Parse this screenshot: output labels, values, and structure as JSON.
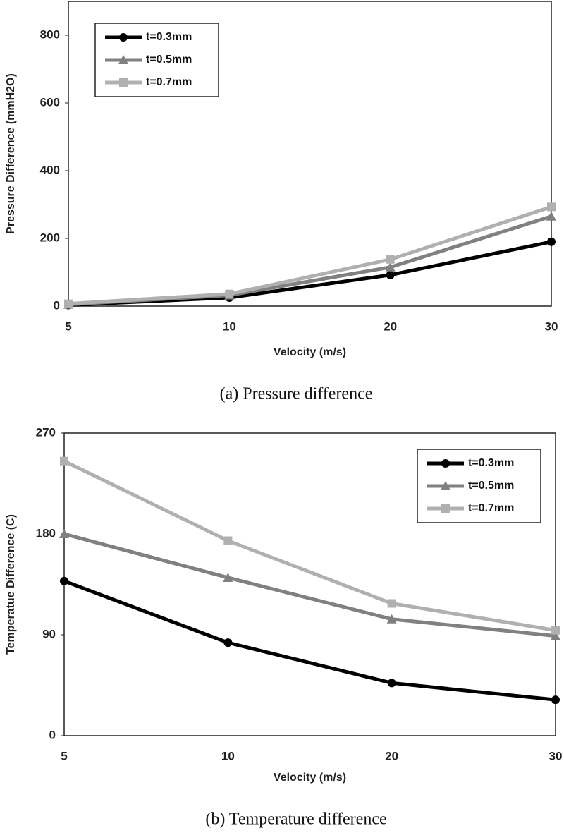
{
  "chart_data": [
    {
      "type": "line",
      "xlabel": "Velocity (m/s)",
      "ylabel": "Pressure Difference (mmH2O)",
      "caption": "(a) Pressure difference",
      "categories": [
        "5",
        "10",
        "20",
        "30"
      ],
      "ylim": [
        0,
        900
      ],
      "yticks": [
        0,
        200,
        400,
        600,
        800
      ],
      "legend": "upper left",
      "series": [
        {
          "name": "t=0.3mm",
          "color": "#000000",
          "marker": "circle",
          "values": [
            3,
            25,
            92,
            190
          ]
        },
        {
          "name": "t=0.5mm",
          "color": "#808080",
          "marker": "triangle",
          "values": [
            5,
            32,
            115,
            265
          ]
        },
        {
          "name": "t=0.7mm",
          "color": "#b0b0b0",
          "marker": "square",
          "values": [
            7,
            36,
            138,
            293
          ]
        }
      ]
    },
    {
      "type": "line",
      "xlabel": "Velocity (m/s)",
      "ylabel": "Temperatue Difference (C)",
      "caption": "(b) Temperature difference",
      "categories": [
        "5",
        "10",
        "20",
        "30"
      ],
      "ylim": [
        0,
        270
      ],
      "yticks": [
        0,
        90,
        180,
        270
      ],
      "legend": "upper right",
      "series": [
        {
          "name": "t=0.3mm",
          "color": "#000000",
          "marker": "circle",
          "values": [
            138,
            83,
            47,
            32
          ]
        },
        {
          "name": "t=0.5mm",
          "color": "#808080",
          "marker": "triangle",
          "values": [
            180,
            141,
            104,
            89
          ]
        },
        {
          "name": "t=0.7mm",
          "color": "#b0b0b0",
          "marker": "square",
          "values": [
            245,
            174,
            118,
            94
          ]
        }
      ]
    }
  ]
}
